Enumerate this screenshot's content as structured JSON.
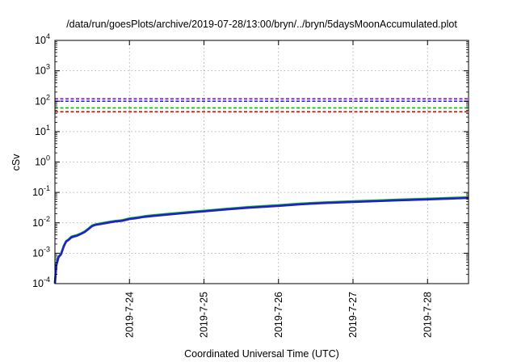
{
  "chart_data": {
    "type": "line",
    "title": "/data/run/goesPlots/archive/2019-07-28/13:00/bryn/../bryn/5daysMoonAccumulated.plot",
    "xlabel": "Coordinated Universal Time (UTC)",
    "ylabel": "cSv",
    "x_ticks": [
      "2019-7-24",
      "2019-7-25",
      "2019-7-26",
      "2019-7-27",
      "2019-7-28"
    ],
    "x_range_days": [
      0.0,
      5.55
    ],
    "x_tick_days": [
      1,
      2,
      3,
      4,
      5
    ],
    "y_scale": "log",
    "ylim": [
      0.0001,
      10000
    ],
    "y_ticks": [
      {
        "base": "10",
        "exp": "-4",
        "value": 0.0001
      },
      {
        "base": "10",
        "exp": "-3",
        "value": 0.001
      },
      {
        "base": "10",
        "exp": "-2",
        "value": 0.01
      },
      {
        "base": "10",
        "exp": "-1",
        "value": 0.1
      },
      {
        "base": "10",
        "exp": "0",
        "value": 1
      },
      {
        "base": "10",
        "exp": "1",
        "value": 10
      },
      {
        "base": "10",
        "exp": "2",
        "value": 100
      },
      {
        "base": "10",
        "exp": "3",
        "value": 1000
      },
      {
        "base": "10",
        "exp": "4",
        "value": 10000
      }
    ],
    "grid": true,
    "thresholds": [
      {
        "color": "#9400d3",
        "value": 120
      },
      {
        "color": "#1f1fd0",
        "value": 100
      },
      {
        "color": "#00c000",
        "value": 60
      },
      {
        "color": "#e00000",
        "value": 45
      }
    ],
    "series": [
      {
        "color": "#00c000",
        "x": [
          0.0,
          0.02,
          0.05,
          0.08,
          0.12,
          0.15,
          0.18,
          0.22,
          0.25,
          0.3,
          0.35,
          0.4,
          0.45,
          0.5,
          0.55,
          0.6,
          0.7,
          0.8,
          0.9,
          1.0,
          1.1,
          1.2,
          1.3,
          1.5,
          1.7,
          2.0,
          2.3,
          2.6,
          3.0,
          3.3,
          3.6,
          4.0,
          4.3,
          4.6,
          5.0,
          5.3,
          5.55
        ],
        "y": [
          0.00011,
          0.00045,
          0.0008,
          0.00095,
          0.0018,
          0.0025,
          0.0028,
          0.0035,
          0.0037,
          0.004,
          0.0045,
          0.0052,
          0.0065,
          0.0082,
          0.009,
          0.0095,
          0.0105,
          0.0115,
          0.0122,
          0.014,
          0.015,
          0.0165,
          0.0175,
          0.0195,
          0.0215,
          0.025,
          0.029,
          0.033,
          0.038,
          0.043,
          0.047,
          0.051,
          0.054,
          0.058,
          0.062,
          0.066,
          0.069
        ]
      },
      {
        "color": "#1f1fd0",
        "x": [
          0.0,
          0.02,
          0.05,
          0.08,
          0.12,
          0.15,
          0.18,
          0.22,
          0.25,
          0.3,
          0.35,
          0.4,
          0.45,
          0.5,
          0.55,
          0.6,
          0.7,
          0.8,
          0.9,
          1.0,
          1.1,
          1.2,
          1.3,
          1.5,
          1.7,
          2.0,
          2.3,
          2.6,
          3.0,
          3.3,
          3.6,
          4.0,
          4.3,
          4.6,
          5.0,
          5.3,
          5.55
        ],
        "y": [
          0.0001,
          0.0004,
          0.00075,
          0.0009,
          0.0017,
          0.0024,
          0.0027,
          0.0033,
          0.0035,
          0.0038,
          0.0043,
          0.005,
          0.0062,
          0.0078,
          0.0086,
          0.009,
          0.01,
          0.011,
          0.0116,
          0.0133,
          0.0143,
          0.0157,
          0.0167,
          0.0185,
          0.0205,
          0.0238,
          0.0275,
          0.0313,
          0.036,
          0.0408,
          0.0446,
          0.0485,
          0.0513,
          0.0551,
          0.0589,
          0.0627,
          0.0655
        ]
      }
    ]
  }
}
